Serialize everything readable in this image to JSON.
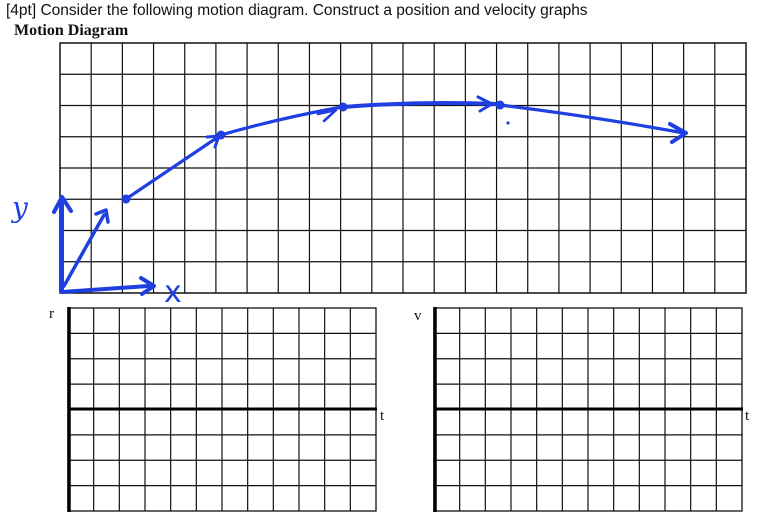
{
  "header": {
    "question": "[4pt] Consider the following motion diagram. Construct a position and velocity graphs",
    "diagram_title": "Motion Diagram"
  },
  "handwriting": {
    "y_label": "y",
    "x_label": "x",
    "ink_color": "#1f3fe0"
  },
  "position_graph": {
    "vertical_label": "r",
    "horizontal_label": "t"
  },
  "velocity_graph": {
    "vertical_label": "v",
    "horizontal_label": "t"
  },
  "colors": {
    "grid": "#111111",
    "ink": "#1f3fe0"
  }
}
